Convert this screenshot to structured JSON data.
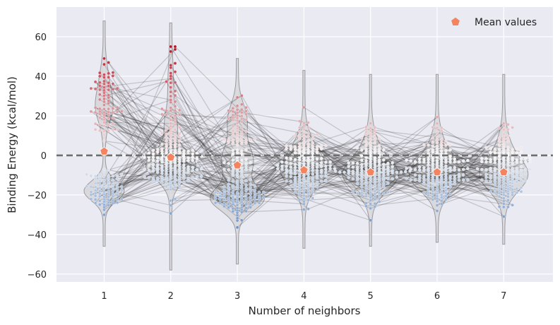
{
  "chart_data": {
    "type": "violin-swarm",
    "xlabel": "Number of neighbors",
    "ylabel": "Binding Energy (kcal/mol)",
    "categories": [
      "1",
      "2",
      "3",
      "4",
      "5",
      "6",
      "7"
    ],
    "ylim": [
      -64,
      75
    ],
    "yticks": [
      -60,
      -40,
      -20,
      0,
      20,
      40,
      60
    ],
    "ytick_labels": [
      "−60",
      "−40",
      "−20",
      "0",
      "20",
      "40",
      "60"
    ],
    "grid": true,
    "reference_line": {
      "y": 0,
      "style": "dashed"
    },
    "legend": {
      "position": "top-right",
      "entries": [
        "Mean values"
      ]
    },
    "means": [
      2,
      -1,
      -5,
      -7.5,
      -8.5,
      -8.5,
      -8.5
    ],
    "violin_ranges": [
      [
        -46,
        68
      ],
      [
        -58,
        67
      ],
      [
        -55,
        49
      ],
      [
        -47,
        43
      ],
      [
        -46,
        41
      ],
      [
        -44,
        41
      ],
      [
        -45,
        41
      ]
    ],
    "colors": {
      "background": "#eaeaf2",
      "grid": "#ffffff",
      "mean_marker": "#f4845f",
      "violin_fill": "#d3d3d6",
      "positive": "#b2182b",
      "negative": "#4a7bbf",
      "neutral": "#f7f7f7",
      "lines": "#333333"
    }
  }
}
